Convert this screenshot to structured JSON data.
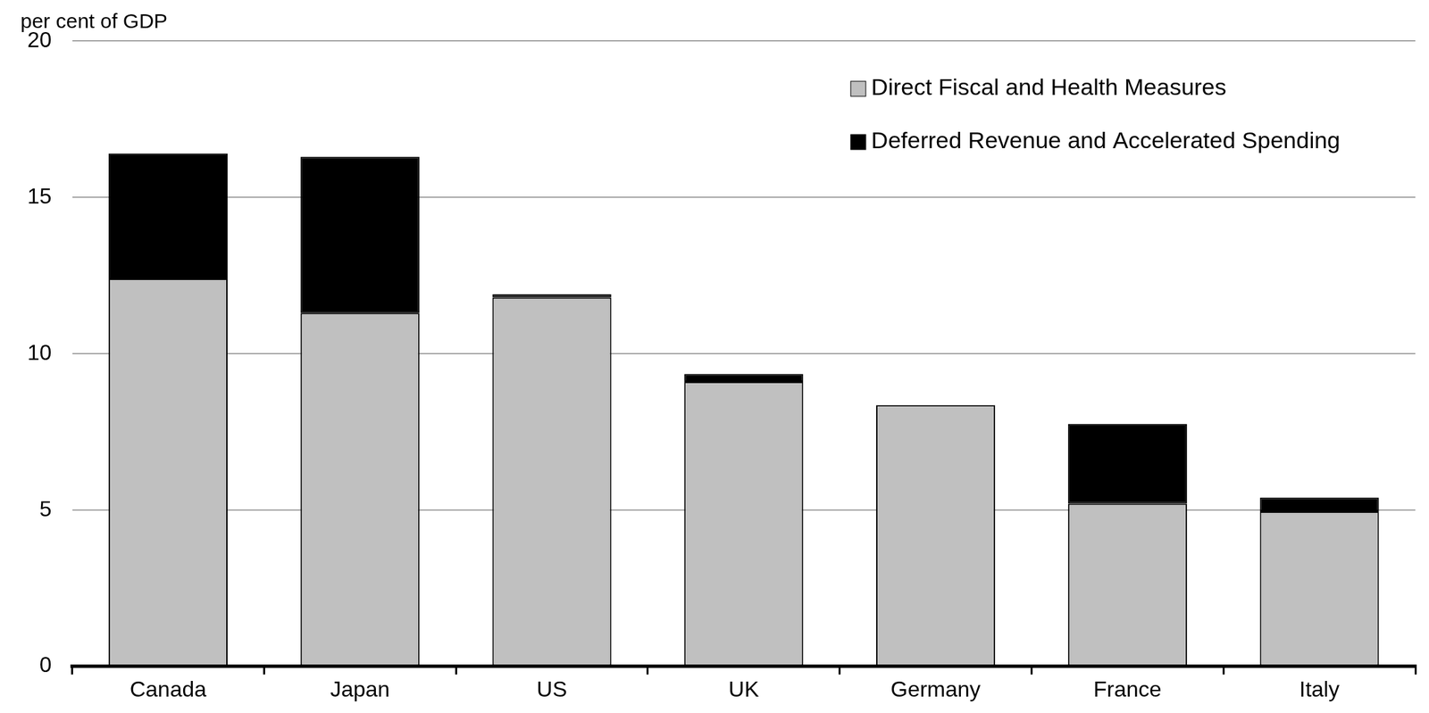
{
  "chart_data": {
    "type": "bar",
    "ylabel": "per cent of GDP",
    "categories": [
      "Canada",
      "Japan",
      "US",
      "UK",
      "Germany",
      "France",
      "Italy"
    ],
    "series": [
      {
        "name": "Direct Fiscal and Health Measures",
        "color": "#c0c0c0",
        "values": [
          12.4,
          11.3,
          11.8,
          9.1,
          8.35,
          5.2,
          4.95
        ]
      },
      {
        "name": "Deferred Revenue and Accelerated Spending",
        "color": "#000000",
        "values": [
          4.0,
          5.0,
          0.1,
          0.25,
          0,
          2.55,
          0.45
        ]
      }
    ],
    "ylim": [
      0,
      20
    ],
    "yticks": [
      0,
      5,
      10,
      15,
      20
    ],
    "grid": true,
    "stacked": true,
    "legend": "upper right"
  }
}
